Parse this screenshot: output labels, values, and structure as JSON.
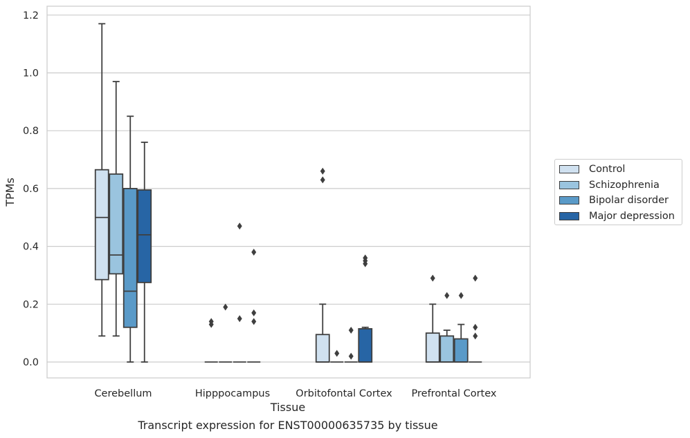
{
  "chart_data": {
    "type": "box",
    "caption": "Transcript expression for ENST00000635735 by tissue",
    "xlabel": "Tissue",
    "ylabel": "TPMs",
    "ylim": [
      -0.055,
      1.23
    ],
    "yticks": [
      "0.0",
      "0.2",
      "0.4",
      "0.6",
      "0.8",
      "1.0",
      "1.2"
    ],
    "grid": "horizontal",
    "legend_position": "right",
    "categories": [
      "Cerebellum",
      "Hipppocampus",
      "Orbitofontal Cortex",
      "Prefrontal Cortex"
    ],
    "series": [
      {
        "name": "Control",
        "color": "#d0e1f0",
        "boxes": [
          {
            "q1": 0.285,
            "median": 0.5,
            "q3": 0.665,
            "whislo": 0.09,
            "whishi": 1.17,
            "fliers": []
          },
          {
            "q1": 0.0,
            "median": 0.0,
            "q3": 0.0,
            "whislo": 0.0,
            "whishi": 0.0,
            "fliers": [
              0.14,
              0.13
            ]
          },
          {
            "q1": 0.0,
            "median": 0.0,
            "q3": 0.095,
            "whislo": 0.0,
            "whishi": 0.2,
            "fliers": [
              0.66,
              0.63
            ]
          },
          {
            "q1": 0.0,
            "median": 0.0,
            "q3": 0.1,
            "whislo": 0.0,
            "whishi": 0.2,
            "fliers": [
              0.29
            ]
          }
        ]
      },
      {
        "name": "Schizophrenia",
        "color": "#9ac4df",
        "boxes": [
          {
            "q1": 0.305,
            "median": 0.37,
            "q3": 0.65,
            "whislo": 0.09,
            "whishi": 0.97,
            "fliers": []
          },
          {
            "q1": 0.0,
            "median": 0.0,
            "q3": 0.0,
            "whislo": 0.0,
            "whishi": 0.0,
            "fliers": [
              0.19
            ]
          },
          {
            "q1": 0.0,
            "median": 0.0,
            "q3": 0.0,
            "whislo": 0.0,
            "whishi": 0.0,
            "fliers": [
              0.03
            ]
          },
          {
            "q1": 0.0,
            "median": 0.0,
            "q3": 0.09,
            "whislo": 0.0,
            "whishi": 0.11,
            "fliers": [
              0.23
            ]
          }
        ]
      },
      {
        "name": "Bipolar disorder",
        "color": "#5a9ac8",
        "boxes": [
          {
            "q1": 0.12,
            "median": 0.245,
            "q3": 0.6,
            "whislo": 0.0,
            "whishi": 0.85,
            "fliers": []
          },
          {
            "q1": 0.0,
            "median": 0.0,
            "q3": 0.0,
            "whislo": 0.0,
            "whishi": 0.0,
            "fliers": [
              0.47,
              0.15
            ]
          },
          {
            "q1": 0.0,
            "median": 0.0,
            "q3": 0.0,
            "whislo": 0.0,
            "whishi": 0.0,
            "fliers": [
              0.11,
              0.02
            ]
          },
          {
            "q1": 0.0,
            "median": 0.0,
            "q3": 0.08,
            "whislo": 0.0,
            "whishi": 0.13,
            "fliers": [
              0.23
            ]
          }
        ]
      },
      {
        "name": "Major depression",
        "color": "#2765a5",
        "boxes": [
          {
            "q1": 0.275,
            "median": 0.44,
            "q3": 0.595,
            "whislo": 0.0,
            "whishi": 0.76,
            "fliers": []
          },
          {
            "q1": 0.0,
            "median": 0.0,
            "q3": 0.0,
            "whislo": 0.0,
            "whishi": 0.0,
            "fliers": [
              0.38,
              0.17,
              0.14
            ]
          },
          {
            "q1": 0.0,
            "median": 0.0,
            "q3": 0.115,
            "whislo": 0.0,
            "whishi": 0.12,
            "fliers": [
              0.36,
              0.35,
              0.34
            ]
          },
          {
            "q1": 0.0,
            "median": 0.0,
            "q3": 0.0,
            "whislo": 0.0,
            "whishi": 0.0,
            "fliers": [
              0.29,
              0.12,
              0.09
            ]
          }
        ]
      }
    ]
  }
}
